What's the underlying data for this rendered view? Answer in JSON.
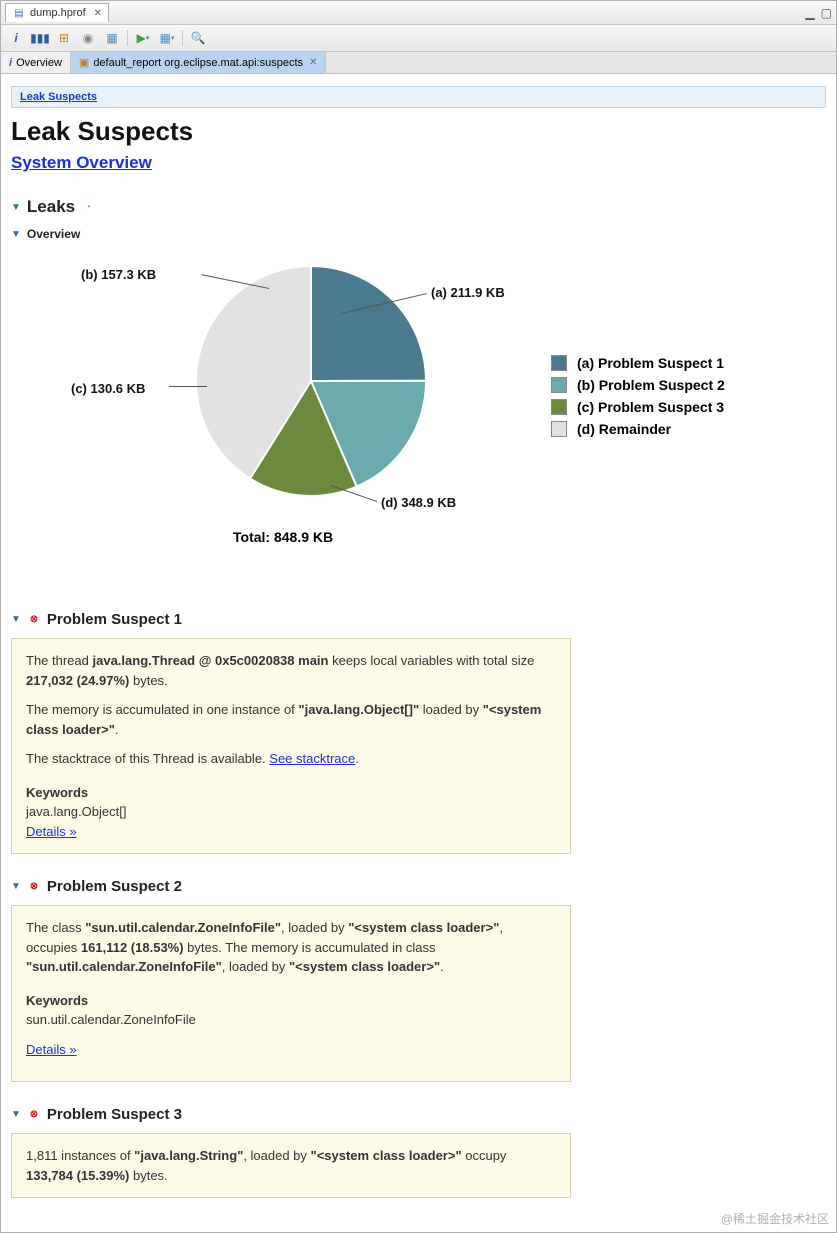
{
  "fileTab": {
    "name": "dump.hprof"
  },
  "subTabs": {
    "overview": "Overview",
    "report": "default_report  org.eclipse.mat.api:suspects"
  },
  "breadcrumb": "Leak Suspects",
  "pageTitle": "Leak Suspects",
  "sysOverview": "System Overview",
  "sections": {
    "leaks": "Leaks",
    "overview": "Overview",
    "ps1": "Problem Suspect 1",
    "ps2": "Problem Suspect 2",
    "ps3": "Problem Suspect 3"
  },
  "chart": {
    "type": "pie",
    "total_label": "Total: 848.9 KB",
    "slices": [
      {
        "key": "a",
        "label": "(a)  211.9 KB",
        "legend": "(a)  Problem Suspect 1",
        "value": 211.9,
        "color": "#4b7a8f"
      },
      {
        "key": "b",
        "label": "(b)  157.3 KB",
        "legend": "(b)  Problem Suspect 2",
        "value": 157.3,
        "color": "#6aa9ac"
      },
      {
        "key": "c",
        "label": "(c)  130.6 KB",
        "legend": "(c)  Problem Suspect 3",
        "value": 130.6,
        "color": "#6b8a3e"
      },
      {
        "key": "d",
        "label": "(d)  348.9 KB",
        "legend": "(d)  Remainder",
        "value": 348.9,
        "color": "#e2e2e2"
      }
    ],
    "radius": 115,
    "background": "#ffffff",
    "label_fontsize": 13,
    "legend_fontsize": 14
  },
  "suspect1": {
    "t1a": "The thread ",
    "t1b": "java.lang.Thread @ 0x5c0020838 main",
    "t1c": " keeps local variables with total size ",
    "t1d": "217,032 (24.97%)",
    "t1e": " bytes.",
    "t2a": "The memory is accumulated in one instance of ",
    "t2b": "\"java.lang.Object[]\"",
    "t2c": " loaded by ",
    "t2d": "\"<system class loader>\"",
    "t2e": ".",
    "t3a": "The stacktrace of this Thread is available. ",
    "t3link": "See stacktrace",
    "t3b": ".",
    "kwLabel": "Keywords",
    "kwVal": "java.lang.Object[]",
    "details": "Details »"
  },
  "suspect2": {
    "t1a": "The class ",
    "t1b": "\"sun.util.calendar.ZoneInfoFile\"",
    "t1c": ", loaded by ",
    "t1d": "\"<system class loader>\"",
    "t1e": ", occupies ",
    "t1f": "161,112 (18.53%)",
    "t1g": " bytes. The memory is accumulated in class ",
    "t1h": "\"sun.util.calendar.ZoneInfoFile\"",
    "t1i": ", loaded by ",
    "t1j": "\"<system class loader>\"",
    "t1k": ".",
    "kwLabel": "Keywords",
    "kwVal": "sun.util.calendar.ZoneInfoFile",
    "details": "Details »"
  },
  "suspect3": {
    "t1a": "1,811 instances of ",
    "t1b": "\"java.lang.String\"",
    "t1c": ", loaded by ",
    "t1d": "\"<system class loader>\"",
    "t1e": " occupy ",
    "t1f": "133,784 (15.39%)",
    "t1g": " bytes."
  },
  "watermark": "@稀土掘金技术社区"
}
